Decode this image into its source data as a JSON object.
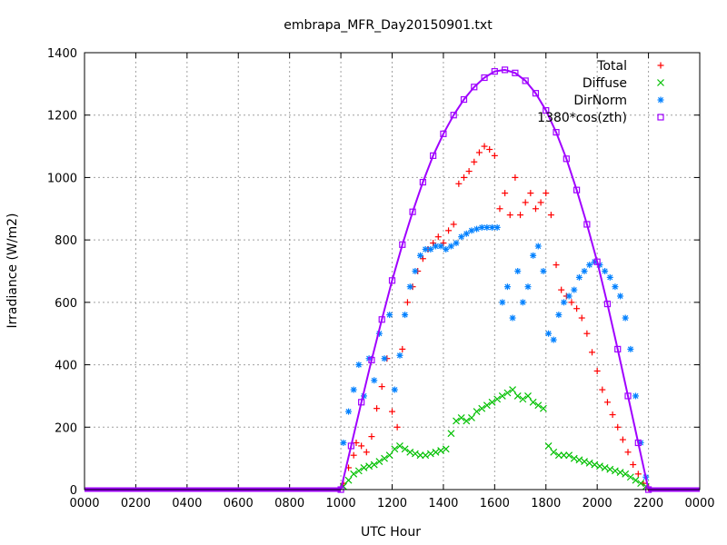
{
  "chart_data": {
    "type": "scatter",
    "title": "embrapa_MFR_Day20150901.txt",
    "xlabel": "UTC Hour",
    "ylabel": "Irradiance (W/m2)",
    "xlim": [
      0,
      24
    ],
    "ylim": [
      0,
      1400
    ],
    "x_tick_labels": [
      "0000",
      "0200",
      "0400",
      "0600",
      "0800",
      "1000",
      "1200",
      "1400",
      "1600",
      "1800",
      "2000",
      "2200",
      "0000"
    ],
    "y_tick_labels": [
      "0",
      "200",
      "400",
      "600",
      "800",
      "1000",
      "1200",
      "1400"
    ],
    "grid": true,
    "legend_position": "top-right",
    "series": [
      {
        "name": "Total",
        "marker": "plus",
        "color": "#ff0000",
        "x": [
          10.1,
          10.3,
          10.5,
          10.6,
          10.8,
          11.0,
          11.2,
          11.4,
          11.6,
          11.8,
          12.0,
          12.2,
          12.4,
          12.6,
          12.8,
          13.0,
          13.2,
          13.4,
          13.6,
          13.8,
          14.0,
          14.2,
          14.4,
          14.6,
          14.8,
          15.0,
          15.2,
          15.4,
          15.6,
          15.8,
          16.0,
          16.2,
          16.4,
          16.6,
          16.8,
          17.0,
          17.2,
          17.4,
          17.6,
          17.8,
          18.0,
          18.2,
          18.4,
          18.6,
          18.8,
          19.0,
          19.2,
          19.4,
          19.6,
          19.8,
          20.0,
          20.2,
          20.4,
          20.6,
          20.8,
          21.0,
          21.2,
          21.4,
          21.6,
          21.8,
          22.0
        ],
        "y": [
          20,
          70,
          110,
          150,
          140,
          120,
          170,
          260,
          330,
          420,
          250,
          200,
          450,
          600,
          650,
          700,
          740,
          770,
          790,
          810,
          790,
          830,
          850,
          980,
          1000,
          1020,
          1050,
          1080,
          1100,
          1090,
          1070,
          900,
          950,
          880,
          1000,
          880,
          920,
          950,
          900,
          920,
          950,
          880,
          720,
          640,
          620,
          600,
          580,
          550,
          500,
          440,
          380,
          320,
          280,
          240,
          200,
          160,
          120,
          80,
          50,
          20,
          5
        ]
      },
      {
        "name": "Diffuse",
        "marker": "x",
        "color": "#00c000",
        "x": [
          10.1,
          10.3,
          10.5,
          10.7,
          10.9,
          11.1,
          11.3,
          11.5,
          11.7,
          11.9,
          12.1,
          12.3,
          12.5,
          12.7,
          12.9,
          13.1,
          13.3,
          13.5,
          13.7,
          13.9,
          14.1,
          14.3,
          14.5,
          14.7,
          14.9,
          15.1,
          15.3,
          15.5,
          15.7,
          15.9,
          16.1,
          16.3,
          16.5,
          16.7,
          16.9,
          17.1,
          17.3,
          17.5,
          17.7,
          17.9,
          18.1,
          18.3,
          18.5,
          18.7,
          18.9,
          19.1,
          19.3,
          19.5,
          19.7,
          19.9,
          20.1,
          20.3,
          20.5,
          20.7,
          20.9,
          21.1,
          21.3,
          21.5,
          21.7,
          21.9
        ],
        "y": [
          10,
          30,
          50,
          60,
          70,
          75,
          80,
          90,
          100,
          110,
          130,
          140,
          130,
          120,
          115,
          110,
          110,
          115,
          120,
          125,
          130,
          180,
          220,
          230,
          220,
          230,
          250,
          260,
          270,
          280,
          290,
          300,
          310,
          320,
          300,
          290,
          300,
          280,
          270,
          260,
          140,
          120,
          110,
          110,
          110,
          100,
          95,
          90,
          85,
          80,
          75,
          70,
          65,
          60,
          55,
          50,
          40,
          30,
          20,
          10
        ]
      },
      {
        "name": "DirNorm",
        "marker": "star",
        "color": "#0080ff",
        "x": [
          10.1,
          10.3,
          10.5,
          10.7,
          10.9,
          11.1,
          11.3,
          11.5,
          11.7,
          11.9,
          12.1,
          12.3,
          12.5,
          12.7,
          12.9,
          13.1,
          13.3,
          13.5,
          13.7,
          13.9,
          14.1,
          14.3,
          14.5,
          14.7,
          14.9,
          15.1,
          15.3,
          15.5,
          15.7,
          15.9,
          16.1,
          16.3,
          16.5,
          16.7,
          16.9,
          17.1,
          17.3,
          17.5,
          17.7,
          17.9,
          18.1,
          18.3,
          18.5,
          18.7,
          18.9,
          19.1,
          19.3,
          19.5,
          19.7,
          19.9,
          20.1,
          20.3,
          20.5,
          20.7,
          20.9,
          21.1,
          21.3,
          21.5,
          21.7,
          21.9
        ],
        "y": [
          150,
          250,
          320,
          400,
          300,
          420,
          350,
          500,
          420,
          560,
          320,
          430,
          560,
          650,
          700,
          750,
          770,
          770,
          780,
          780,
          770,
          780,
          790,
          810,
          820,
          830,
          835,
          840,
          840,
          840,
          840,
          600,
          650,
          550,
          700,
          600,
          650,
          750,
          780,
          700,
          500,
          480,
          560,
          600,
          620,
          640,
          680,
          700,
          720,
          730,
          720,
          700,
          680,
          650,
          620,
          550,
          450,
          300,
          150,
          40
        ]
      },
      {
        "name": "1380*cos(zth)",
        "marker": "open-square",
        "color": "#a000ff",
        "x": [
          10.0,
          10.4,
          10.8,
          11.2,
          11.6,
          12.0,
          12.4,
          12.8,
          13.2,
          13.6,
          14.0,
          14.4,
          14.8,
          15.2,
          15.6,
          16.0,
          16.4,
          16.8,
          17.2,
          17.6,
          18.0,
          18.4,
          18.8,
          19.2,
          19.6,
          20.0,
          20.4,
          20.8,
          21.2,
          21.6,
          22.0
        ],
        "y": [
          0,
          140,
          280,
          415,
          545,
          670,
          785,
          890,
          985,
          1070,
          1140,
          1200,
          1250,
          1290,
          1320,
          1340,
          1345,
          1335,
          1310,
          1270,
          1215,
          1145,
          1060,
          960,
          850,
          730,
          595,
          450,
          300,
          150,
          0
        ]
      }
    ]
  }
}
